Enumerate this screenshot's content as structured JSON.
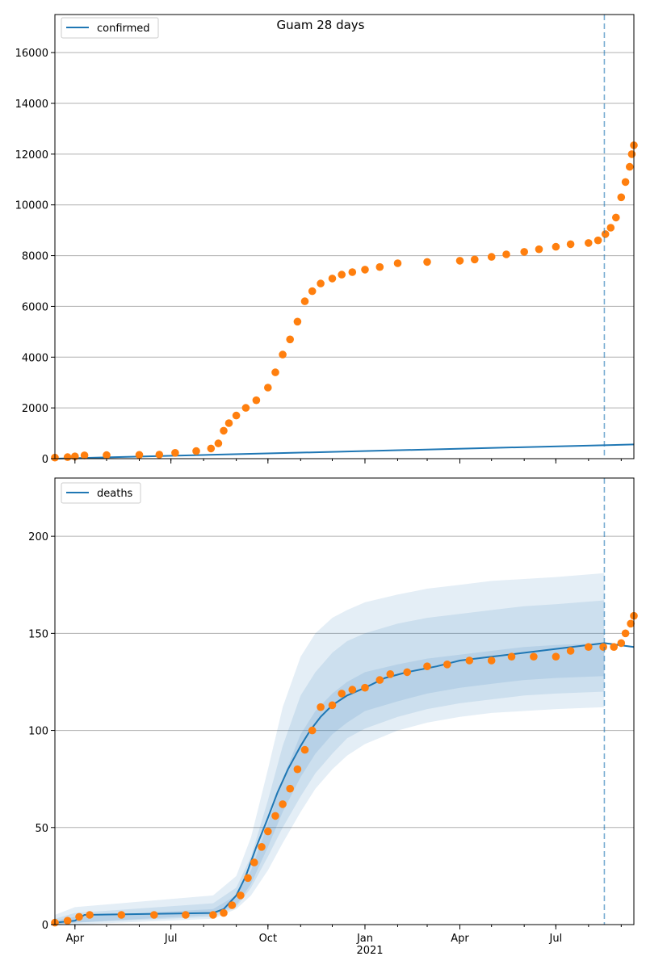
{
  "figure": {
    "title": "Guam 28 days"
  },
  "colors": {
    "model": "#1f77b4",
    "observed": "#ff7f0e",
    "band": "#1f77b4",
    "grid": "#b0b0b0"
  },
  "x_axis": {
    "ticks": [
      {
        "date": "2020-04-01",
        "label": "Apr"
      },
      {
        "date": "2020-07-01",
        "label": "Jul"
      },
      {
        "date": "2020-10-01",
        "label": "Oct"
      },
      {
        "date": "2021-01-01",
        "label": "Jan"
      },
      {
        "date": "2021-04-01",
        "label": "Apr"
      },
      {
        "date": "2021-07-01",
        "label": "Jul"
      }
    ],
    "year_label": "2021"
  },
  "chart_data": [
    {
      "type": "line",
      "panel": "top",
      "legend": "confirmed",
      "legend_position": "top-left",
      "grid": "horizontal",
      "xlim": [
        "2020-03-13",
        "2021-09-13"
      ],
      "ylim": [
        0,
        17500
      ],
      "yticks": [
        0,
        2000,
        4000,
        6000,
        8000,
        10000,
        12000,
        14000,
        16000
      ],
      "forecast_start": "2021-08-16",
      "series": [
        {
          "name": "confirmed",
          "kind": "line",
          "x": [
            "2020-03-13",
            "2021-09-13"
          ],
          "y": [
            0,
            560
          ]
        },
        {
          "kind": "scatter",
          "x": [
            "2020-03-13",
            "2020-03-25",
            "2020-04-01",
            "2020-04-10",
            "2020-05-01",
            "2020-06-01",
            "2020-06-20",
            "2020-07-05",
            "2020-07-25",
            "2020-08-08",
            "2020-08-15",
            "2020-08-20",
            "2020-08-25",
            "2020-09-01",
            "2020-09-10",
            "2020-09-20",
            "2020-10-01",
            "2020-10-08",
            "2020-10-15",
            "2020-10-22",
            "2020-10-29",
            "2020-11-05",
            "2020-11-12",
            "2020-11-20",
            "2020-12-01",
            "2020-12-10",
            "2020-12-20",
            "2021-01-01",
            "2021-01-15",
            "2021-02-01",
            "2021-03-01",
            "2021-04-01",
            "2021-04-15",
            "2021-05-01",
            "2021-05-15",
            "2021-06-01",
            "2021-06-15",
            "2021-07-01",
            "2021-07-15",
            "2021-08-01",
            "2021-08-10",
            "2021-08-17",
            "2021-08-22",
            "2021-08-27",
            "2021-09-01",
            "2021-09-05",
            "2021-09-09",
            "2021-09-11",
            "2021-09-13"
          ],
          "y": [
            40,
            60,
            90,
            130,
            140,
            150,
            160,
            230,
            300,
            400,
            600,
            1100,
            1400,
            1700,
            2000,
            2300,
            2800,
            3400,
            4100,
            4700,
            5400,
            6200,
            6600,
            6900,
            7100,
            7250,
            7350,
            7450,
            7550,
            7700,
            7750,
            7800,
            7850,
            7950,
            8050,
            8150,
            8250,
            8350,
            8450,
            8500,
            8600,
            8850,
            9100,
            9500,
            10300,
            10900,
            11500,
            12000,
            12350
          ]
        }
      ]
    },
    {
      "type": "line",
      "panel": "bottom",
      "legend": "deaths",
      "legend_position": "top-left",
      "grid": "horizontal",
      "xlim": [
        "2020-03-13",
        "2021-09-13"
      ],
      "ylim": [
        0,
        230
      ],
      "yticks": [
        0,
        50,
        100,
        150,
        200
      ],
      "forecast_start": "2021-08-16",
      "series": [
        {
          "name": "deaths",
          "kind": "line",
          "x": [
            "2020-03-13",
            "2020-04-01",
            "2020-04-10",
            "2020-08-10",
            "2020-08-20",
            "2020-09-01",
            "2020-09-10",
            "2020-09-20",
            "2020-10-01",
            "2020-10-10",
            "2020-10-20",
            "2020-11-01",
            "2020-11-10",
            "2020-11-20",
            "2020-12-01",
            "2020-12-15",
            "2021-01-01",
            "2021-01-20",
            "2021-02-10",
            "2021-03-10",
            "2021-04-01",
            "2021-05-01",
            "2021-06-01",
            "2021-07-01",
            "2021-08-01",
            "2021-08-16",
            "2021-09-13"
          ],
          "y": [
            1,
            2,
            5,
            6,
            8,
            15,
            25,
            40,
            55,
            68,
            80,
            92,
            100,
            107,
            113,
            118,
            122,
            127,
            130,
            133,
            136,
            138,
            140,
            142,
            144,
            145,
            143
          ]
        },
        {
          "kind": "band",
          "x": [
            "2020-03-13",
            "2020-04-01",
            "2020-08-10",
            "2020-09-01",
            "2020-09-15",
            "2020-10-01",
            "2020-10-15",
            "2020-11-01",
            "2020-11-15",
            "2020-12-01",
            "2020-12-15",
            "2021-01-01",
            "2021-02-01",
            "2021-03-01",
            "2021-04-01",
            "2021-05-01",
            "2021-06-01",
            "2021-07-01",
            "2021-08-16"
          ],
          "low": [
            0,
            0,
            3,
            8,
            15,
            28,
            42,
            58,
            70,
            80,
            87,
            93,
            100,
            104,
            107,
            109,
            110,
            111,
            112
          ],
          "high": [
            5,
            9,
            15,
            25,
            45,
            80,
            112,
            138,
            150,
            158,
            162,
            166,
            170,
            173,
            175,
            177,
            178,
            179,
            181
          ]
        },
        {
          "kind": "band",
          "x": [
            "2020-03-13",
            "2020-04-01",
            "2020-08-10",
            "2020-09-01",
            "2020-09-15",
            "2020-10-01",
            "2020-10-15",
            "2020-11-01",
            "2020-11-15",
            "2020-12-01",
            "2020-12-15",
            "2021-01-01",
            "2021-02-01",
            "2021-03-01",
            "2021-04-01",
            "2021-05-01",
            "2021-06-01",
            "2021-07-01",
            "2021-08-16"
          ],
          "low": [
            0,
            1,
            4,
            9,
            19,
            35,
            50,
            66,
            78,
            88,
            96,
            101,
            107,
            111,
            114,
            116,
            118,
            119,
            120
          ],
          "high": [
            3,
            6,
            11,
            19,
            35,
            64,
            92,
            118,
            130,
            140,
            146,
            150,
            155,
            158,
            160,
            162,
            164,
            165,
            167
          ]
        },
        {
          "kind": "band",
          "x": [
            "2020-03-13",
            "2020-04-01",
            "2020-08-10",
            "2020-09-01",
            "2020-09-15",
            "2020-10-01",
            "2020-10-15",
            "2020-11-01",
            "2020-11-15",
            "2020-12-01",
            "2020-12-15",
            "2021-01-01",
            "2021-02-01",
            "2021-03-01",
            "2021-04-01",
            "2021-05-01",
            "2021-06-01",
            "2021-07-01",
            "2021-08-16"
          ],
          "low": [
            0,
            1,
            5,
            10,
            21,
            40,
            58,
            76,
            88,
            98,
            104,
            110,
            115,
            119,
            122,
            124,
            126,
            127,
            128
          ],
          "high": [
            2,
            4,
            8,
            15,
            28,
            52,
            75,
            98,
            110,
            119,
            125,
            130,
            134,
            137,
            139,
            141,
            143,
            144,
            145
          ]
        },
        {
          "kind": "scatter",
          "x": [
            "2020-03-13",
            "2020-03-25",
            "2020-04-05",
            "2020-04-15",
            "2020-05-15",
            "2020-06-15",
            "2020-07-15",
            "2020-08-10",
            "2020-08-20",
            "2020-08-28",
            "2020-09-05",
            "2020-09-12",
            "2020-09-18",
            "2020-09-25",
            "2020-10-01",
            "2020-10-08",
            "2020-10-15",
            "2020-10-22",
            "2020-10-29",
            "2020-11-05",
            "2020-11-12",
            "2020-11-20",
            "2020-12-01",
            "2020-12-10",
            "2020-12-20",
            "2021-01-01",
            "2021-01-15",
            "2021-01-25",
            "2021-02-10",
            "2021-03-01",
            "2021-03-20",
            "2021-04-10",
            "2021-05-01",
            "2021-05-20",
            "2021-06-10",
            "2021-07-01",
            "2021-07-15",
            "2021-08-01",
            "2021-08-15",
            "2021-08-25",
            "2021-09-01",
            "2021-09-05",
            "2021-09-10",
            "2021-09-13"
          ],
          "y": [
            1,
            2,
            4,
            5,
            5,
            5,
            5,
            5,
            6,
            10,
            15,
            24,
            32,
            40,
            48,
            56,
            62,
            70,
            80,
            90,
            100,
            112,
            113,
            119,
            121,
            122,
            126,
            129,
            130,
            133,
            134,
            136,
            136,
            138,
            138,
            138,
            141,
            143,
            143,
            143,
            145,
            150,
            155,
            159
          ]
        }
      ]
    }
  ]
}
